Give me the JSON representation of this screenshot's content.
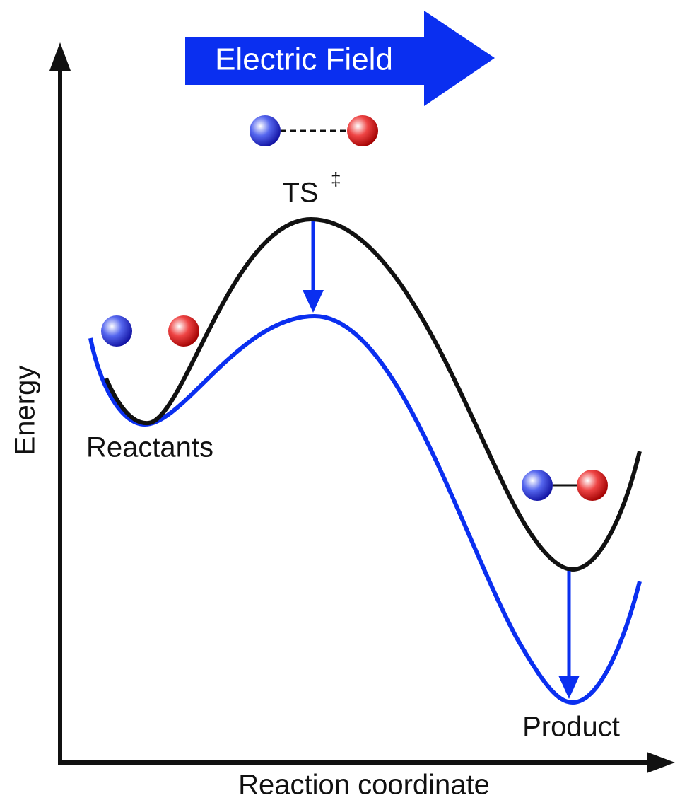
{
  "banner": {
    "label": "Electric Field"
  },
  "states": {
    "transition": {
      "label": "TS",
      "symbol": "‡"
    },
    "reactants": {
      "label": "Reactants"
    },
    "product": {
      "label": "Product"
    }
  },
  "axes": {
    "y_label": "Energy",
    "x_label": "Reaction coordinate"
  }
}
